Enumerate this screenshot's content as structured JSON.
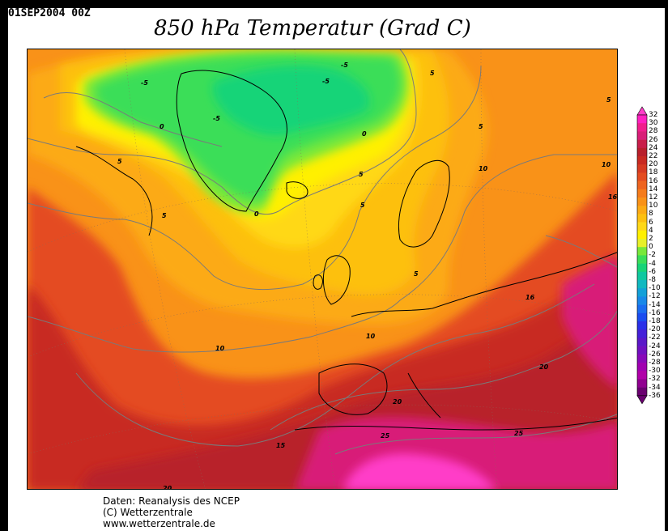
{
  "header": {
    "datestamp": "01SEP2004 00Z",
    "title": "850 hPa Temperatur (Grad C)"
  },
  "legend": {
    "ticks": [
      "32",
      "30",
      "28",
      "26",
      "24",
      "22",
      "20",
      "18",
      "16",
      "14",
      "12",
      "10",
      "8",
      "6",
      "4",
      "2",
      "0",
      "-2",
      "-4",
      "-6",
      "-8",
      "-10",
      "-12",
      "-14",
      "-16",
      "-18",
      "-20",
      "-22",
      "-24",
      "-26",
      "-28",
      "-30",
      "-32",
      "-34",
      "-36"
    ],
    "colors": {
      "32": "#ff3ec8",
      "30": "#ff20c0",
      "28": "#f01e8c",
      "26": "#d81e78",
      "24": "#c81e4a",
      "22": "#b8202c",
      "20": "#c82a22",
      "18": "#d63a22",
      "16": "#e44c20",
      "14": "#ee6420",
      "12": "#f57c1c",
      "10": "#f99218",
      "8": "#fcaa14",
      "6": "#fdc010",
      "4": "#ffd818",
      "2": "#fff000",
      "0": "#e8f028",
      "-2": "#78e83a",
      "-4": "#3ade58",
      "-6": "#18d478",
      "-8": "#10c8a0",
      "-10": "#10b8c0",
      "-12": "#12a0d8",
      "-14": "#1888e8",
      "-16": "#1a6cf0",
      "-18": "#1a4cf0",
      "-20": "#2a30e8",
      "-22": "#4420d8",
      "-24": "#5a18c8",
      "-26": "#7010c0",
      "-28": "#8808b8",
      "-30": "#a000b0",
      "-32": "#b000a8",
      "-34": "#900090",
      "-36": "#6a0070"
    }
  },
  "map": {
    "contour_labels": [
      "-5",
      "-5",
      "-5",
      "-5",
      "0",
      "0",
      "0",
      "5",
      "5",
      "5",
      "5",
      "5",
      "5",
      "5",
      "10",
      "10",
      "10",
      "10",
      "15",
      "16",
      "16",
      "20",
      "20",
      "25",
      "25",
      "20",
      "5"
    ]
  },
  "footer": {
    "line1": "Daten: Reanalysis des NCEP",
    "line2": "(C) Wetterzentrale",
    "line3": "www.wetterzentrale.de"
  }
}
